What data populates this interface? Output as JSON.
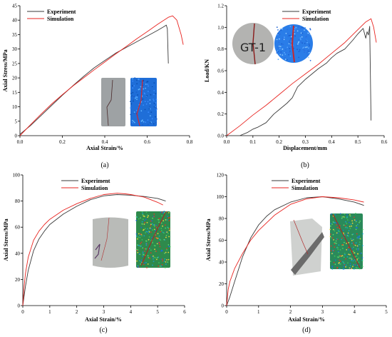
{
  "colors": {
    "experiment": "#3a3a3a",
    "simulation": "#e8231f"
  },
  "chart_data": [
    {
      "panel": "a",
      "caption": "(a)",
      "type": "line",
      "xlabel": "Axial Strain/%",
      "ylabel": "Axial Stress/MPa",
      "xlim": [
        0,
        0.8
      ],
      "ylim": [
        0,
        45
      ],
      "xticks": [
        0.0,
        0.2,
        0.4,
        0.6,
        0.8
      ],
      "yticks": [
        0,
        5,
        10,
        15,
        20,
        25,
        30,
        35,
        40,
        45
      ],
      "xtick_labels": [
        "0.0",
        "0.2",
        "0.4",
        "0.6",
        "0.8"
      ],
      "ytick_labels": [
        "0",
        "5",
        "10",
        "15",
        "20",
        "25",
        "30",
        "35",
        "40",
        "45"
      ],
      "legend": "top-left",
      "series": [
        {
          "name": "Experiment",
          "color": "#3a3a3a",
          "x": [
            0,
            0.05,
            0.1,
            0.15,
            0.2,
            0.25,
            0.3,
            0.35,
            0.4,
            0.45,
            0.5,
            0.55,
            0.6,
            0.65,
            0.68,
            0.69,
            0.695,
            0.7
          ],
          "y": [
            0.5,
            3.5,
            7,
            10.5,
            14,
            17.3,
            20.5,
            23.5,
            26,
            28.5,
            30.5,
            32.5,
            34.5,
            36.5,
            37.8,
            38.3,
            37,
            25
          ]
        },
        {
          "name": "Simulation",
          "color": "#e8231f",
          "x": [
            0,
            0.05,
            0.1,
            0.15,
            0.2,
            0.25,
            0.3,
            0.35,
            0.4,
            0.45,
            0.5,
            0.55,
            0.6,
            0.65,
            0.7,
            0.72,
            0.74,
            0.76,
            0.77
          ],
          "y": [
            0,
            3.8,
            7.5,
            11,
            14.2,
            17.2,
            20,
            22.8,
            25.5,
            28.2,
            30.8,
            33.5,
            36,
            38.6,
            41,
            41.5,
            40,
            35,
            31.5
          ]
        }
      ]
    },
    {
      "panel": "b",
      "caption": "(b)",
      "type": "line",
      "xlabel": "Displacement/mm",
      "ylabel": "Load/KN",
      "xlim": [
        0,
        0.6
      ],
      "ylim": [
        0,
        1.2
      ],
      "xticks": [
        0.0,
        0.1,
        0.2,
        0.3,
        0.4,
        0.5,
        0.6
      ],
      "yticks": [
        0.0,
        0.2,
        0.4,
        0.6,
        0.8,
        1.0,
        1.2
      ],
      "xtick_labels": [
        "0.0",
        "0.1",
        "0.2",
        "0.3",
        "0.4",
        "0.5",
        "0.6"
      ],
      "ytick_labels": [
        "0.0",
        "0.2",
        "0.4",
        "0.6",
        "0.8",
        "1.0",
        "1.2"
      ],
      "legend": "top-center",
      "inset_text": "GT-1",
      "series": [
        {
          "name": "Experiment",
          "color": "#3a3a3a",
          "x": [
            0.05,
            0.08,
            0.1,
            0.12,
            0.15,
            0.18,
            0.2,
            0.23,
            0.25,
            0.27,
            0.3,
            0.33,
            0.35,
            0.38,
            0.4,
            0.42,
            0.45,
            0.48,
            0.5,
            0.52,
            0.53,
            0.535,
            0.54,
            0.545,
            0.55
          ],
          "y": [
            0,
            0.03,
            0.06,
            0.08,
            0.12,
            0.2,
            0.24,
            0.3,
            0.35,
            0.45,
            0.52,
            0.58,
            0.62,
            0.67,
            0.72,
            0.76,
            0.8,
            0.88,
            0.94,
            0.99,
            0.9,
            0.96,
            0.93,
            1.01,
            0.14
          ]
        },
        {
          "name": "Simulation",
          "color": "#e8231f",
          "x": [
            0,
            0.05,
            0.1,
            0.15,
            0.2,
            0.25,
            0.3,
            0.35,
            0.4,
            0.45,
            0.5,
            0.53,
            0.55,
            0.56,
            0.57
          ],
          "y": [
            0,
            0.09,
            0.19,
            0.28,
            0.38,
            0.48,
            0.57,
            0.66,
            0.76,
            0.86,
            0.98,
            1.05,
            1.08,
            1.0,
            0.86
          ]
        }
      ]
    },
    {
      "panel": "c",
      "caption": "(c)",
      "type": "line",
      "xlabel": "Axial Strain/%",
      "ylabel": "Axial Stress/MPa",
      "xlim": [
        0,
        6
      ],
      "ylim": [
        0,
        100
      ],
      "xticks": [
        0,
        1,
        2,
        3,
        4,
        5,
        6
      ],
      "yticks": [
        0,
        20,
        40,
        60,
        80,
        100
      ],
      "xtick_labels": [
        "0",
        "1",
        "2",
        "3",
        "4",
        "5",
        "6"
      ],
      "ytick_labels": [
        "0",
        "20",
        "40",
        "60",
        "80",
        "100"
      ],
      "legend": "top-center",
      "series": [
        {
          "name": "Experiment",
          "color": "#3a3a3a",
          "x": [
            0,
            0.1,
            0.2,
            0.4,
            0.6,
            0.8,
            1,
            1.5,
            2,
            2.5,
            3,
            3.5,
            4,
            4.5,
            5,
            5.3
          ],
          "y": [
            0,
            15,
            27,
            42,
            51,
            57,
            62,
            70,
            76,
            81,
            84,
            85,
            84.5,
            83.5,
            82,
            80
          ]
        },
        {
          "name": "Simulation",
          "color": "#e8231f",
          "x": [
            0,
            0.05,
            0.1,
            0.2,
            0.4,
            0.6,
            0.8,
            1,
            1.5,
            2,
            2.5,
            3,
            3.5,
            3.8,
            4,
            4.5,
            5,
            5.2
          ],
          "y": [
            0,
            15,
            25,
            37,
            50,
            57,
            62,
            66,
            73,
            78,
            82,
            85,
            86,
            85.5,
            85,
            83,
            79,
            77
          ]
        }
      ]
    },
    {
      "panel": "d",
      "caption": "(d)",
      "type": "line",
      "xlabel": "Axial Strain/%",
      "ylabel": "Axial Stress/MPa",
      "xlim": [
        0,
        5
      ],
      "ylim": [
        0,
        120
      ],
      "xticks": [
        0,
        1,
        2,
        3,
        4,
        5
      ],
      "yticks": [
        0,
        20,
        40,
        60,
        80,
        100,
        120
      ],
      "xtick_labels": [
        "0",
        "1",
        "2",
        "3",
        "4",
        "5"
      ],
      "ytick_labels": [
        "0",
        "20",
        "40",
        "60",
        "80",
        "100",
        "120"
      ],
      "legend": "top-center",
      "series": [
        {
          "name": "Experiment",
          "color": "#3a3a3a",
          "x": [
            0,
            0.1,
            0.25,
            0.5,
            0.75,
            1,
            1.25,
            1.5,
            2,
            2.5,
            3,
            3.5,
            4,
            4.3
          ],
          "y": [
            0,
            8,
            22,
            45,
            62,
            74,
            82,
            88,
            95,
            99,
            100,
            98,
            95,
            92
          ]
        },
        {
          "name": "Simulation",
          "color": "#e8231f",
          "x": [
            0,
            0.05,
            0.1,
            0.25,
            0.5,
            0.75,
            1,
            1.5,
            2,
            2.5,
            3,
            3.5,
            4,
            4.3
          ],
          "y": [
            0,
            15,
            22,
            34,
            48,
            60,
            69,
            83,
            93,
            98,
            100,
            99,
            97,
            95
          ]
        }
      ]
    }
  ]
}
